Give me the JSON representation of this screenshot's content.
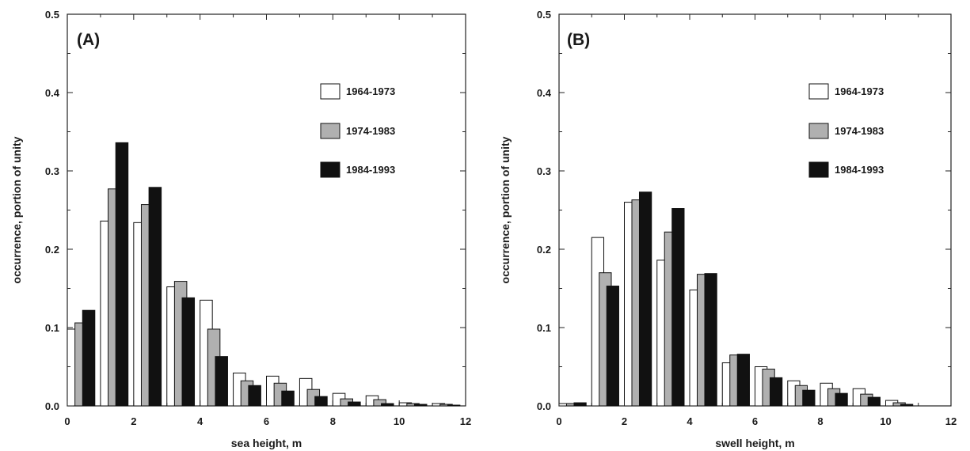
{
  "chart_data": [
    {
      "type": "bar",
      "panel_label": "(A)",
      "xlabel": "sea height, m",
      "ylabel": "occurrence, portion of unity",
      "xlim": [
        0,
        12
      ],
      "ylim": [
        0,
        0.5
      ],
      "xticks": [
        "0",
        "2",
        "4",
        "6",
        "8",
        "10",
        "12"
      ],
      "yticks": [
        "0.0",
        "0.1",
        "0.2",
        "0.3",
        "0.4",
        "0.5"
      ],
      "bin_width": 1,
      "x": [
        0.5,
        1.5,
        2.5,
        3.5,
        4.5,
        5.5,
        6.5,
        7.5,
        8.5,
        9.5,
        10.5,
        11.5
      ],
      "series": [
        {
          "name": "1964-1973",
          "color": "#ffffff",
          "values": [
            0.098,
            0.236,
            0.234,
            0.152,
            0.135,
            0.042,
            0.038,
            0.035,
            0.016,
            0.013,
            0.004,
            0.003
          ]
        },
        {
          "name": "1974-1983",
          "color": "#b0b0b0",
          "values": [
            0.106,
            0.277,
            0.257,
            0.159,
            0.098,
            0.032,
            0.029,
            0.021,
            0.009,
            0.008,
            0.003,
            0.002
          ]
        },
        {
          "name": "1984-1993",
          "color": "#111111",
          "values": [
            0.122,
            0.336,
            0.279,
            0.138,
            0.063,
            0.026,
            0.019,
            0.012,
            0.005,
            0.003,
            0.002,
            0.001
          ]
        }
      ],
      "legend_position": "top-right",
      "grid": false
    },
    {
      "type": "bar",
      "panel_label": "(B)",
      "xlabel": "swell height, m",
      "ylabel": "occurrence, portion of unity",
      "xlim": [
        0,
        12
      ],
      "ylim": [
        0,
        0.5
      ],
      "xticks": [
        "0",
        "2",
        "4",
        "6",
        "8",
        "10",
        "12"
      ],
      "yticks": [
        "0.0",
        "0.1",
        "0.2",
        "0.3",
        "0.4",
        "0.5"
      ],
      "bin_width": 1,
      "x": [
        0.5,
        1.5,
        2.5,
        3.5,
        4.5,
        5.5,
        6.5,
        7.5,
        8.5,
        9.5,
        10.5
      ],
      "series": [
        {
          "name": "1964-1973",
          "color": "#ffffff",
          "values": [
            0.003,
            0.215,
            0.26,
            0.186,
            0.148,
            0.055,
            0.05,
            0.032,
            0.029,
            0.022,
            0.007
          ]
        },
        {
          "name": "1974-1983",
          "color": "#b0b0b0",
          "values": [
            0.003,
            0.17,
            0.263,
            0.222,
            0.168,
            0.065,
            0.047,
            0.026,
            0.022,
            0.015,
            0.004
          ]
        },
        {
          "name": "1984-1993",
          "color": "#111111",
          "values": [
            0.004,
            0.153,
            0.273,
            0.252,
            0.169,
            0.066,
            0.036,
            0.02,
            0.016,
            0.011,
            0.002
          ]
        }
      ],
      "legend_position": "top-right",
      "grid": false
    }
  ]
}
